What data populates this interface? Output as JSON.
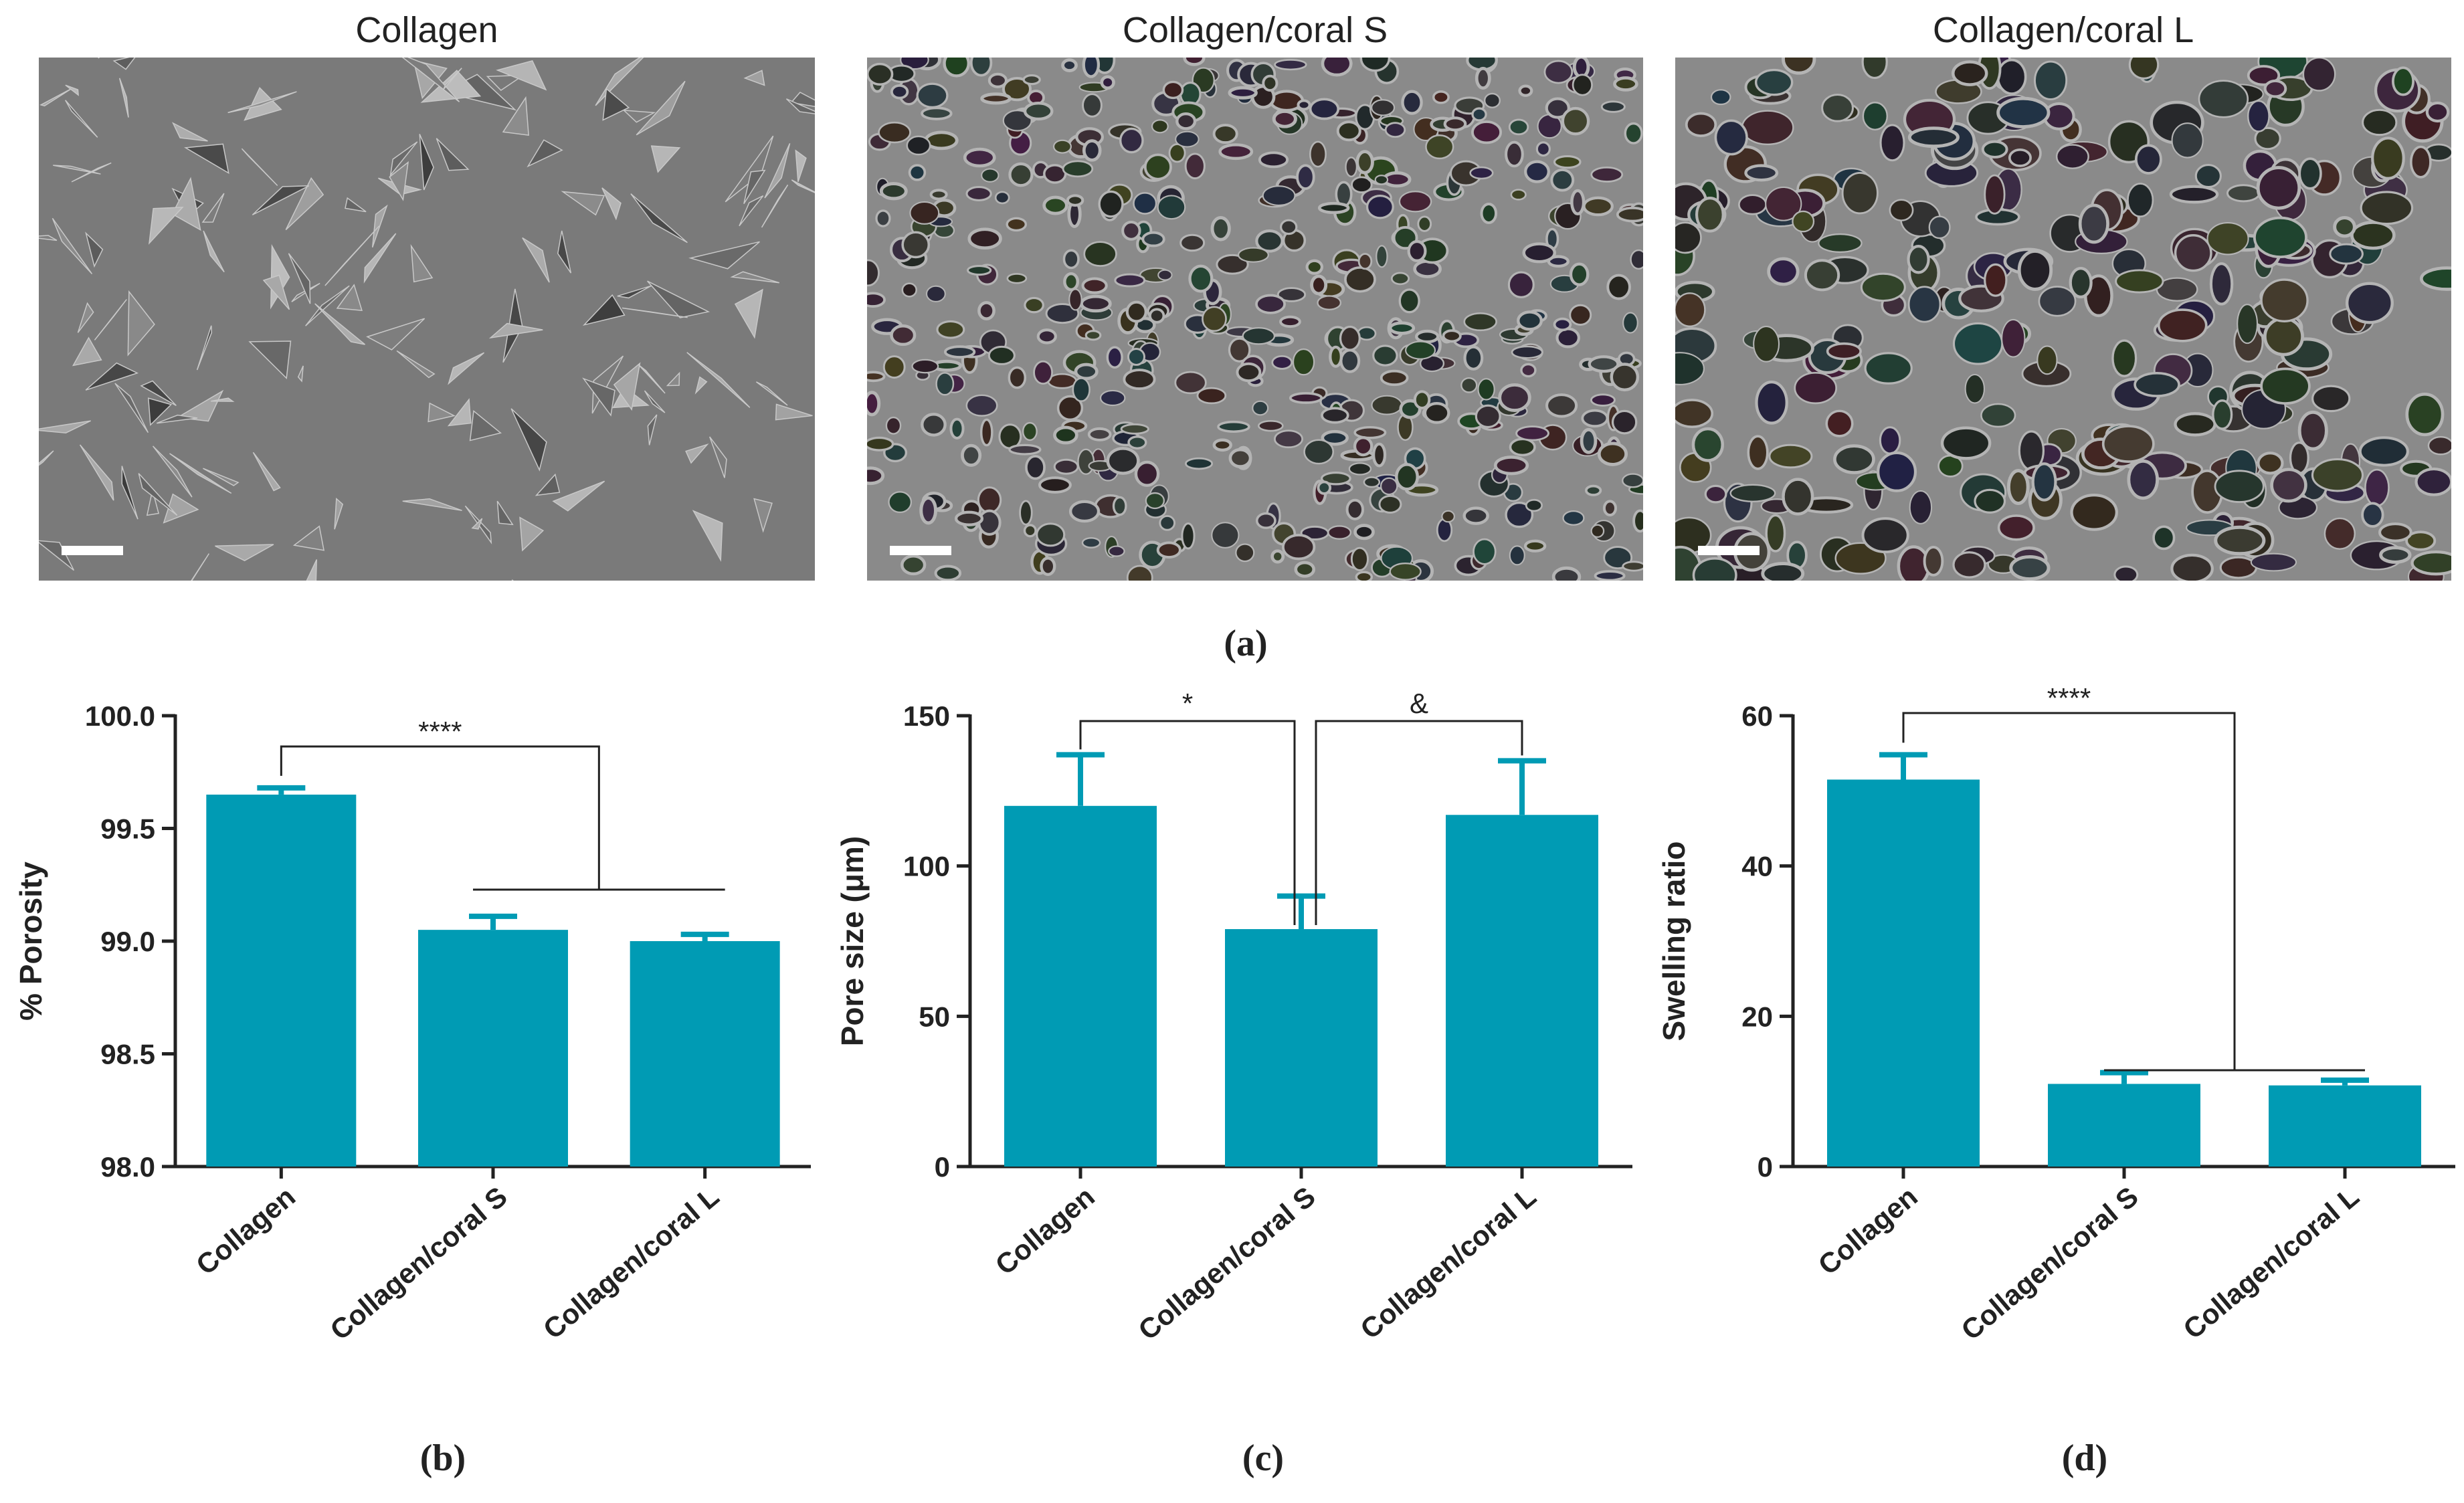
{
  "sem_images": [
    {
      "title": "Collagen"
    },
    {
      "title": "Collagen/coral S"
    },
    {
      "title": "Collagen/coral L"
    }
  ],
  "panel_labels": {
    "a": "(a)",
    "b": "(b)",
    "c": "(c)",
    "d": "(d)"
  },
  "colors": {
    "bar": "#009bb4",
    "axis": "#222222",
    "sem_bg": "#6a6a6a"
  },
  "chart_data": [
    {
      "type": "bar",
      "categories": [
        "Collagen",
        "Collagen/coral S",
        "Collagen/coral L"
      ],
      "values": [
        99.65,
        99.05,
        99.0
      ],
      "errors": [
        0.03,
        0.06,
        0.03
      ],
      "ylabel": "% Porosity",
      "ylim": [
        98.0,
        100.0
      ],
      "yticks": [
        "98.0",
        "98.5",
        "99.0",
        "99.5",
        "100.0"
      ],
      "ytick_values": [
        98.0,
        98.5,
        99.0,
        99.5,
        100.0
      ],
      "significance": [
        {
          "from": 0,
          "to": [
            1,
            2
          ],
          "label": "****"
        }
      ]
    },
    {
      "type": "bar",
      "categories": [
        "Collagen",
        "Collagen/coral S",
        "Collagen/coral L"
      ],
      "values": [
        120,
        79,
        117
      ],
      "errors": [
        17,
        11,
        18
      ],
      "ylabel": "Pore size (μm)",
      "ylim": [
        0,
        150
      ],
      "yticks": [
        "0",
        "50",
        "100",
        "150"
      ],
      "ytick_values": [
        0,
        50,
        100,
        150
      ],
      "significance": [
        {
          "from": 0,
          "to": [
            1
          ],
          "label": "*"
        },
        {
          "from": 1,
          "to": [
            2
          ],
          "label": "&"
        }
      ]
    },
    {
      "type": "bar",
      "categories": [
        "Collagen",
        "Collagen/coral S",
        "Collagen/coral L"
      ],
      "values": [
        51.5,
        11.0,
        10.8
      ],
      "errors": [
        3.3,
        1.5,
        0.7
      ],
      "ylabel": "Swelling ratio",
      "ylim": [
        0,
        60
      ],
      "yticks": [
        "0",
        "20",
        "40",
        "60"
      ],
      "ytick_values": [
        0,
        20,
        40,
        60
      ],
      "significance": [
        {
          "from": 0,
          "to": [
            1,
            2
          ],
          "label": "****"
        }
      ]
    }
  ]
}
